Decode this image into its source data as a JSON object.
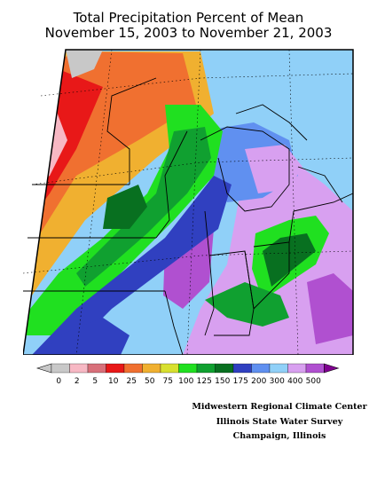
{
  "title": {
    "line1": "Total Precipitation Percent of Mean",
    "line2": "November 15, 2003 to November 21, 2003"
  },
  "legend": {
    "stops": [
      {
        "label": "0",
        "color": "#c8c8c8"
      },
      {
        "label": "2",
        "color": "#f7b8c4"
      },
      {
        "label": "5",
        "color": "#d8707a"
      },
      {
        "label": "10",
        "color": "#e81818"
      },
      {
        "label": "25",
        "color": "#f07030"
      },
      {
        "label": "50",
        "color": "#f0b030"
      },
      {
        "label": "75",
        "color": "#d8e030"
      },
      {
        "label": "100",
        "color": "#20e020"
      },
      {
        "label": "125",
        "color": "#10a030"
      },
      {
        "label": "150",
        "color": "#087020"
      },
      {
        "label": "175",
        "color": "#3040c0"
      },
      {
        "label": "200",
        "color": "#6090f0"
      },
      {
        "label": "300",
        "color": "#90d0f8"
      },
      {
        "label": "400",
        "color": "#d8a0f0"
      },
      {
        "label": "500",
        "color": "#b050d0"
      }
    ],
    "overflow_color": "#800090"
  },
  "credits": {
    "line1": "Midwestern Regional Climate Center",
    "line2": "Illinois State Water Survey",
    "line3": "Champaign, Illinois"
  }
}
